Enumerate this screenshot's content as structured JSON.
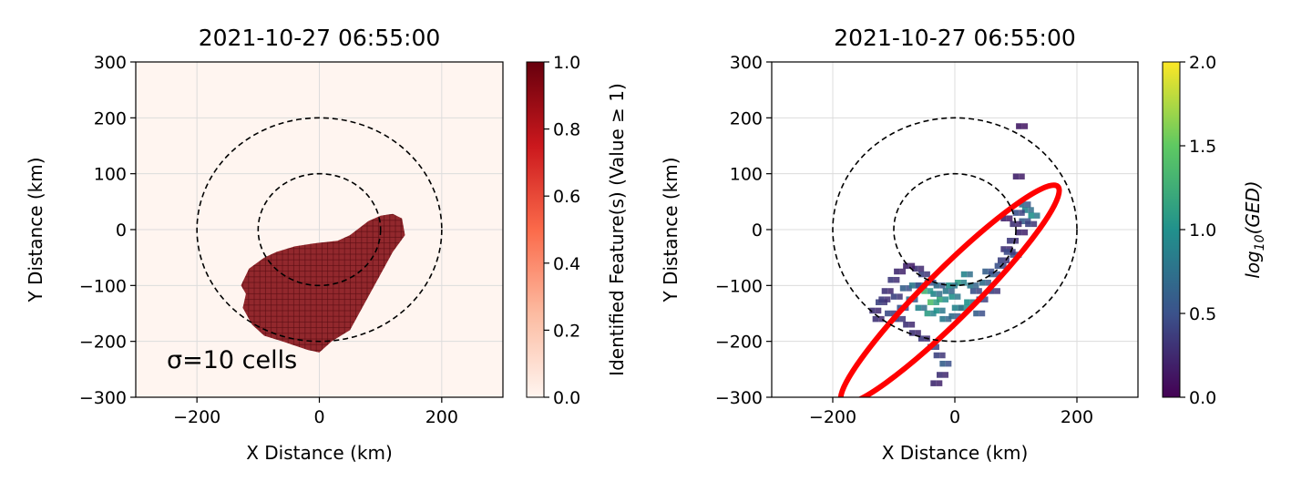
{
  "chart_data": [
    {
      "type": "heatmap",
      "title": "2021-10-27 06:55:00",
      "xlabel": "X Distance (km)",
      "ylabel": "Y Distance (km)",
      "xlim": [
        -300,
        300
      ],
      "ylim": [
        -300,
        300
      ],
      "xticks": [
        -200,
        0,
        200
      ],
      "xtick_labels": [
        "−200",
        "0",
        "200"
      ],
      "yticks": [
        300,
        200,
        100,
        0,
        -100,
        -200,
        -300
      ],
      "ytick_labels": [
        "300",
        "200",
        "100",
        "0",
        "−100",
        "−200",
        "−300"
      ],
      "grid": true,
      "annotation": "σ=10 cells",
      "circles_km": [
        100,
        200
      ],
      "feature_outline": [
        [
          -120,
          -115
        ],
        [
          -125,
          -140
        ],
        [
          -110,
          -170
        ],
        [
          -90,
          -190
        ],
        [
          -60,
          -200
        ],
        [
          -20,
          -215
        ],
        [
          0,
          -220
        ],
        [
          20,
          -200
        ],
        [
          50,
          -180
        ],
        [
          70,
          -140
        ],
        [
          95,
          -90
        ],
        [
          120,
          -40
        ],
        [
          140,
          -10
        ],
        [
          135,
          20
        ],
        [
          120,
          28
        ],
        [
          100,
          25
        ],
        [
          80,
          15
        ],
        [
          50,
          -10
        ],
        [
          30,
          -20
        ],
        [
          -10,
          -25
        ],
        [
          -40,
          -30
        ],
        [
          -70,
          -40
        ],
        [
          -90,
          -50
        ],
        [
          -115,
          -70
        ],
        [
          -128,
          -100
        ]
      ],
      "colorbar": {
        "label": "Identified Feature(s) (Value ≥ 1)",
        "range": [
          0.0,
          1.0
        ],
        "ticks": [
          "0.0",
          "0.2",
          "0.4",
          "0.6",
          "0.8",
          "1.0"
        ],
        "colormap": "Reds",
        "low_color": "#fff5f0",
        "high_color": "#67000d"
      },
      "feature_color": "#8c1c22"
    },
    {
      "type": "scatter",
      "title": "2021-10-27 06:55:00",
      "xlabel": "X Distance (km)",
      "ylabel": "Y Distance (km)",
      "xlim": [
        -300,
        300
      ],
      "ylim": [
        -300,
        300
      ],
      "xticks": [
        -200,
        0,
        200
      ],
      "xtick_labels": [
        "−200",
        "0",
        "200"
      ],
      "yticks": [
        300,
        200,
        100,
        0,
        -100,
        -200,
        -300
      ],
      "ytick_labels": [
        "300",
        "200",
        "100",
        "0",
        "−100",
        "−200",
        "−300"
      ],
      "grid": true,
      "circles_km": [
        100,
        200
      ],
      "ellipse": {
        "center": [
          -8,
          -116
        ],
        "semi_major_km": 250,
        "semi_minor_km": 40,
        "angle_deg": 45,
        "color": "#ff0000"
      },
      "colorbar": {
        "label": "log10(GED)",
        "range": [
          0.0,
          2.0
        ],
        "ticks": [
          "0.0",
          "0.5",
          "1.0",
          "1.5",
          "2.0"
        ],
        "colormap": "viridis",
        "colors": [
          "#440154",
          "#3b528b",
          "#21918c",
          "#5ec962",
          "#fde725"
        ]
      },
      "points": [
        [
          105,
          185,
          0.15
        ],
        [
          100,
          95,
          0.2
        ],
        [
          115,
          35,
          0.9
        ],
        [
          125,
          25,
          1.0
        ],
        [
          110,
          15,
          0.6
        ],
        [
          95,
          10,
          0.3
        ],
        [
          105,
          -5,
          0.25
        ],
        [
          90,
          -20,
          0.35
        ],
        [
          80,
          -35,
          0.3
        ],
        [
          95,
          -45,
          0.5
        ],
        [
          75,
          -55,
          0.4
        ],
        [
          60,
          -80,
          0.6
        ],
        [
          45,
          -95,
          0.7
        ],
        [
          30,
          -110,
          0.5
        ],
        [
          15,
          -80,
          0.9
        ],
        [
          5,
          -95,
          1.1
        ],
        [
          -5,
          -120,
          1.0
        ],
        [
          -15,
          -110,
          0.8
        ],
        [
          -25,
          -125,
          1.2
        ],
        [
          -35,
          -115,
          0.9
        ],
        [
          -45,
          -95,
          0.6
        ],
        [
          -55,
          -80,
          0.4
        ],
        [
          -65,
          -70,
          0.3
        ],
        [
          -80,
          -65,
          0.2
        ],
        [
          -95,
          -75,
          0.25
        ],
        [
          -105,
          -90,
          0.35
        ],
        [
          -115,
          -110,
          0.3
        ],
        [
          -125,
          -130,
          0.4
        ],
        [
          -135,
          -145,
          0.3
        ],
        [
          -110,
          -150,
          0.45
        ],
        [
          -90,
          -140,
          0.5
        ],
        [
          -75,
          -125,
          0.7
        ],
        [
          -60,
          -140,
          0.9
        ],
        [
          -45,
          -150,
          1.1
        ],
        [
          -30,
          -145,
          1.0
        ],
        [
          -20,
          -160,
          0.8
        ],
        [
          -5,
          -155,
          0.7
        ],
        [
          10,
          -140,
          1.2
        ],
        [
          20,
          -130,
          1.0
        ],
        [
          35,
          -150,
          0.6
        ],
        [
          -70,
          -185,
          0.3
        ],
        [
          -55,
          -195,
          0.35
        ],
        [
          -40,
          -210,
          0.5
        ],
        [
          -30,
          -225,
          0.4
        ],
        [
          -20,
          -240,
          0.6
        ],
        [
          -25,
          -260,
          0.3
        ],
        [
          -35,
          -275,
          0.25
        ],
        [
          -85,
          -105,
          0.6
        ],
        [
          -70,
          -100,
          0.8
        ],
        [
          -50,
          -110,
          1.3
        ],
        [
          -40,
          -130,
          1.4
        ],
        [
          -60,
          -100,
          0.5
        ],
        [
          0,
          -140,
          0.9
        ],
        [
          60,
          -110,
          0.4
        ],
        [
          70,
          -65,
          0.5
        ],
        [
          85,
          -40,
          0.45
        ],
        [
          100,
          30,
          0.5
        ],
        [
          120,
          10,
          0.4
        ],
        [
          80,
          20,
          0.2
        ],
        [
          -100,
          -120,
          0.4
        ],
        [
          -120,
          -125,
          0.35
        ],
        [
          -130,
          -160,
          0.3
        ],
        [
          -95,
          -160,
          0.4
        ],
        [
          -80,
          -170,
          0.3
        ],
        [
          40,
          -125,
          0.5
        ],
        [
          25,
          -100,
          0.8
        ],
        [
          -10,
          -100,
          1.0
        ],
        [
          -30,
          -100,
          0.7
        ],
        [
          50,
          -75,
          0.6
        ],
        [
          110,
          45,
          0.7
        ]
      ]
    }
  ]
}
